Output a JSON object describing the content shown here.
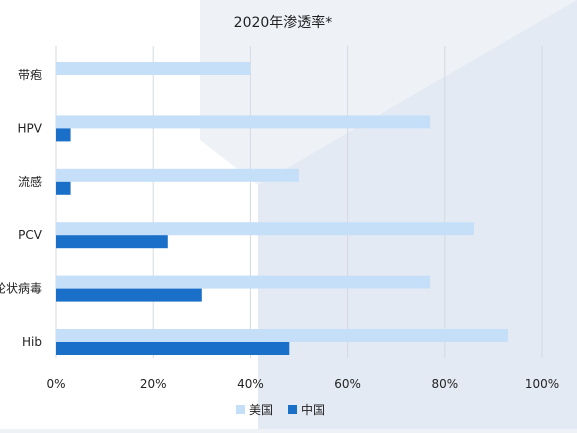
{
  "chart_data": {
    "type": "bar",
    "orientation": "horizontal",
    "title": "2020年渗透率*",
    "categories": [
      "带疱",
      "HPV",
      "流感",
      "PCV",
      "轮状病毒",
      "Hib"
    ],
    "series": [
      {
        "name": "美国",
        "color": "#c6dff8",
        "values": [
          40,
          77,
          50,
          86,
          77,
          93
        ]
      },
      {
        "name": "中国",
        "color": "#1a6fc9",
        "values": [
          0,
          3,
          3,
          23,
          30,
          48
        ]
      }
    ],
    "x_ticks": [
      "0%",
      "20%",
      "40%",
      "60%",
      "80%",
      "100%"
    ],
    "xlim": [
      0,
      100
    ],
    "grid": true,
    "legend_position": "bottom-center"
  }
}
